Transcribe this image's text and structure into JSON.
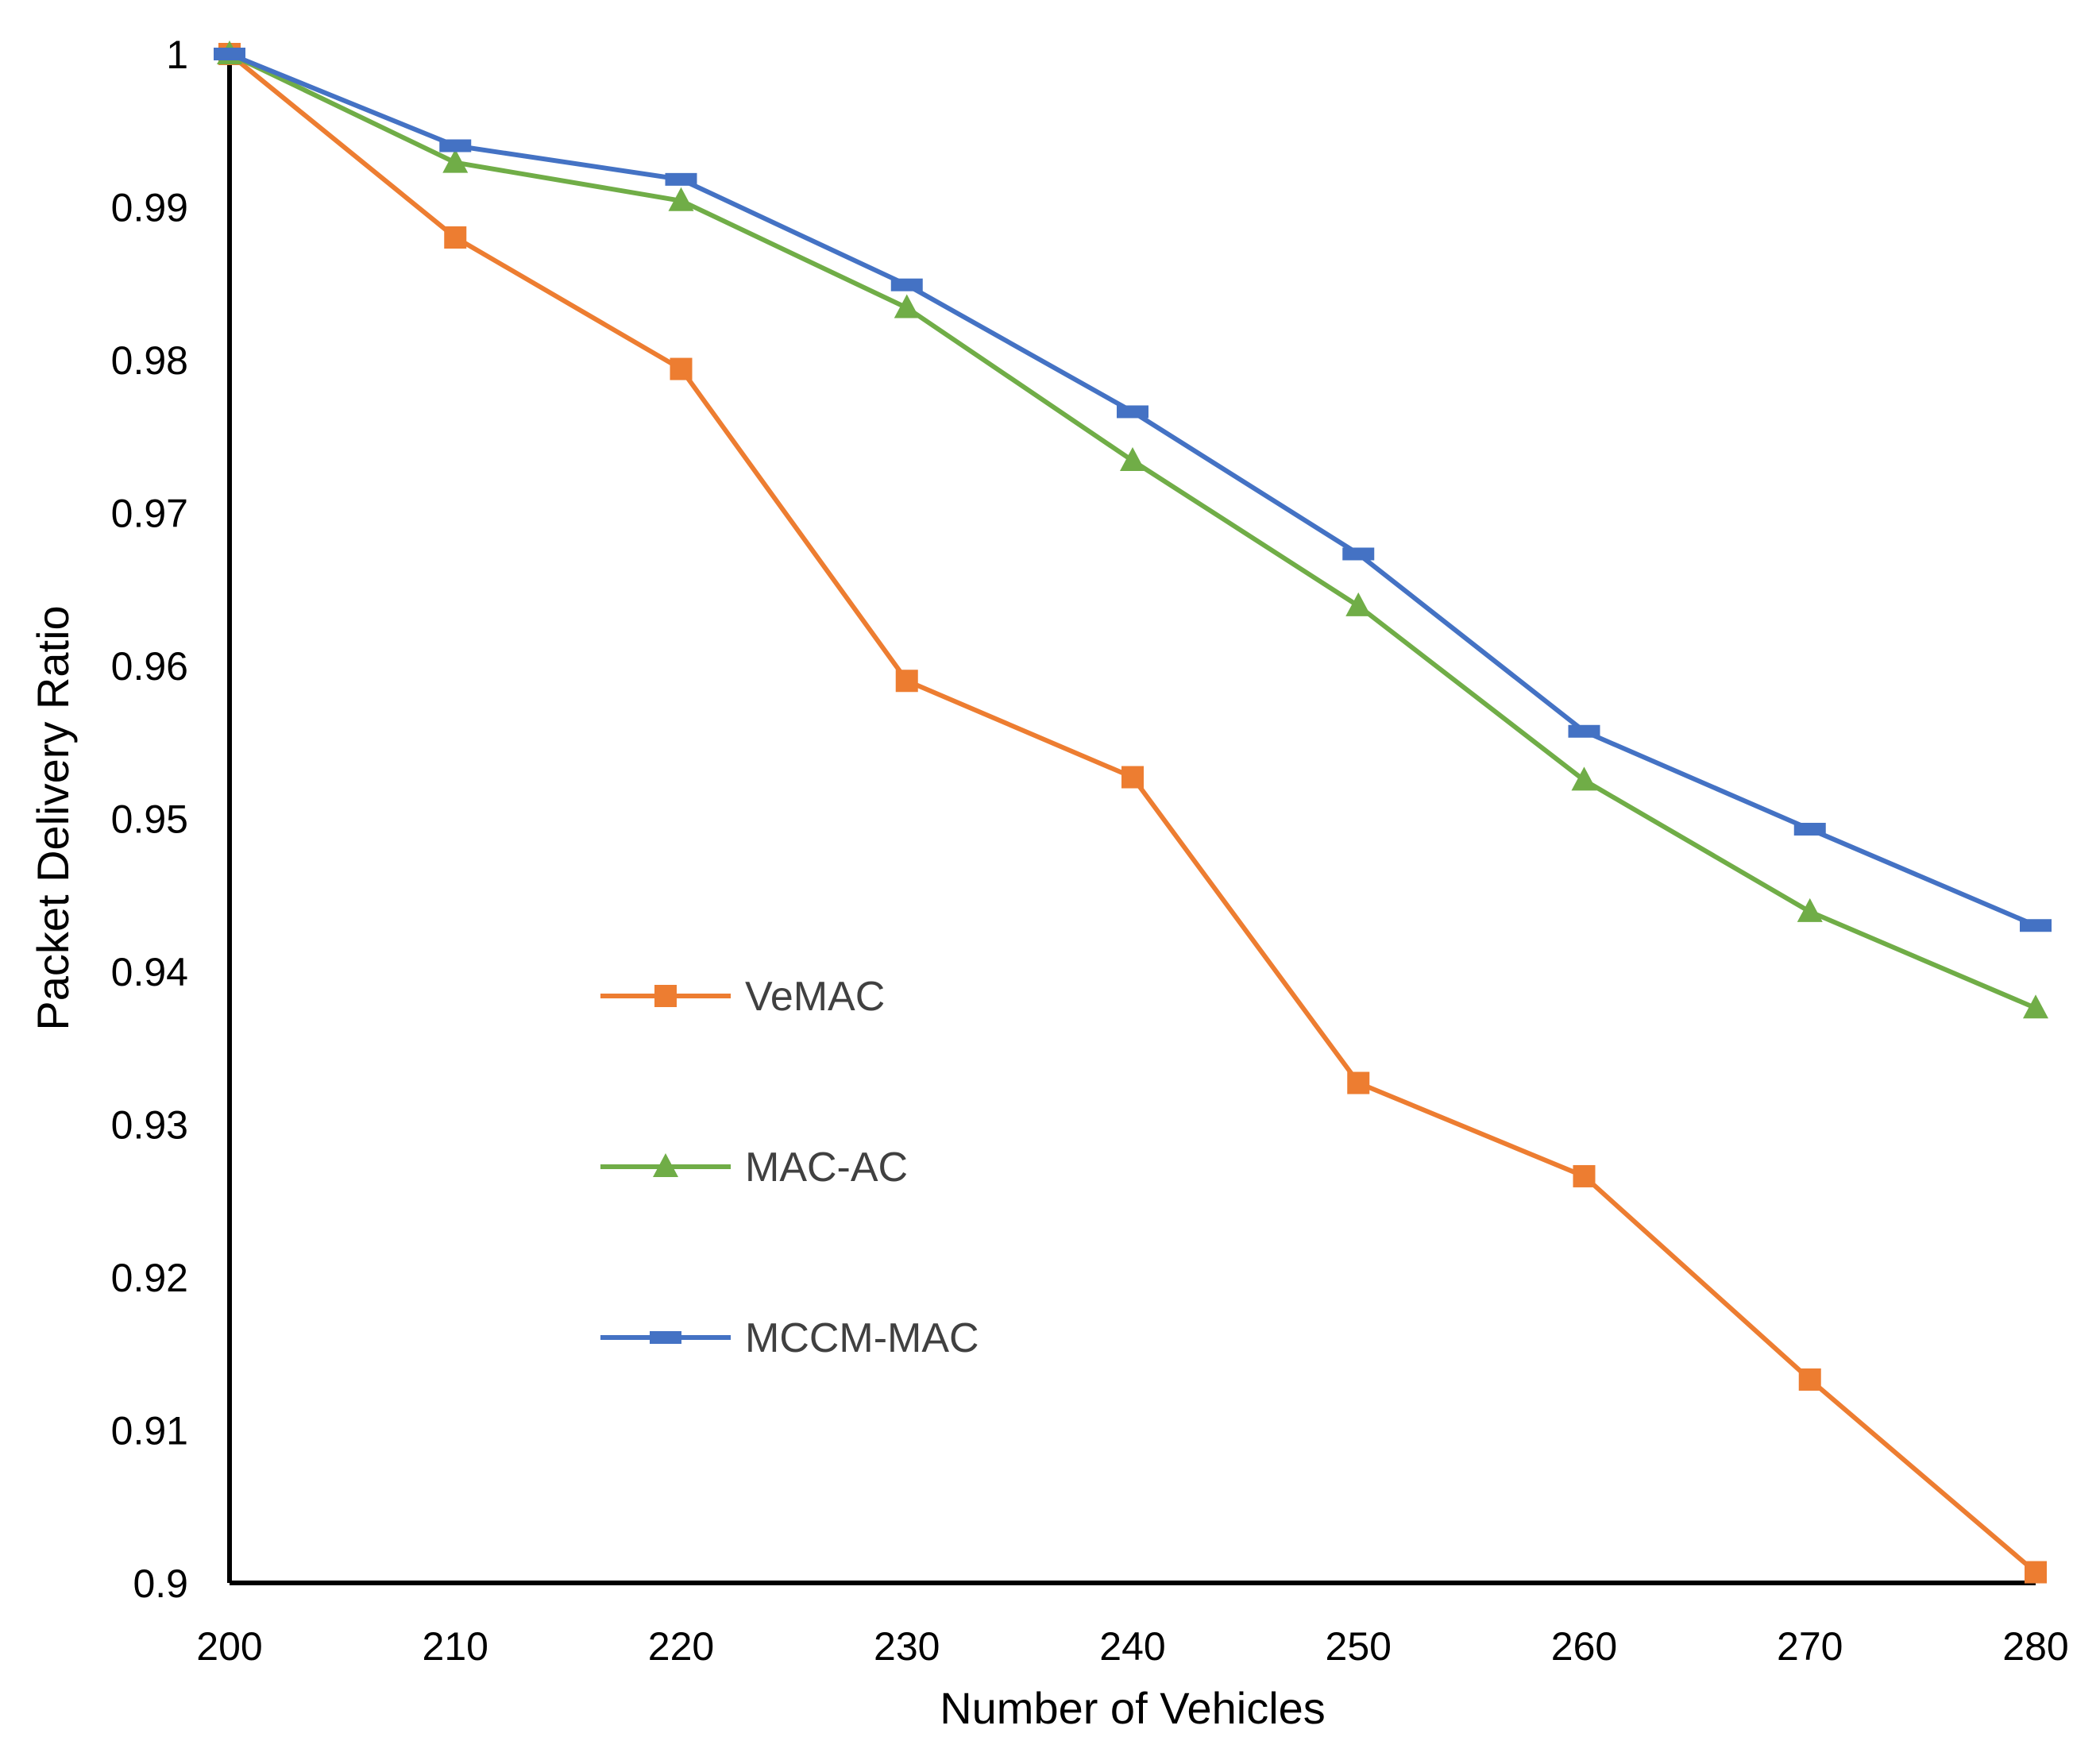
{
  "chart_data": {
    "type": "line",
    "title": "",
    "xlabel": "Number of Vehicles",
    "ylabel": "Packet Delivery Ratio",
    "x": [
      200,
      210,
      220,
      230,
      240,
      250,
      260,
      270,
      280
    ],
    "xlim": [
      200,
      280
    ],
    "ylim": [
      0.9,
      1.0
    ],
    "x_ticks": [
      "200",
      "210",
      "220",
      "230",
      "240",
      "250",
      "260",
      "270",
      "280"
    ],
    "y_ticks": [
      "0.9",
      "0.91",
      "0.92",
      "0.93",
      "0.94",
      "0.95",
      "0.96",
      "0.97",
      "0.98",
      "0.99",
      "1"
    ],
    "grid": false,
    "legend_position": "center-left",
    "series": [
      {
        "name": "VeMAC",
        "marker": "square",
        "color": "#ED7D31",
        "values": [
          1.0,
          0.988,
          0.9794,
          0.959,
          0.9527,
          0.9327,
          0.9266,
          0.9133,
          0.9007
        ]
      },
      {
        "name": "MAC-AC",
        "marker": "triangle",
        "color": "#70AD47",
        "values": [
          1.0,
          0.9929,
          0.9904,
          0.9834,
          0.9734,
          0.9639,
          0.9525,
          0.9439,
          0.9376
        ]
      },
      {
        "name": "MCCM-MAC",
        "marker": "dash",
        "color": "#4472C4",
        "values": [
          1.0,
          0.994,
          0.9918,
          0.9849,
          0.9766,
          0.9673,
          0.9557,
          0.9493,
          0.943
        ]
      }
    ]
  }
}
